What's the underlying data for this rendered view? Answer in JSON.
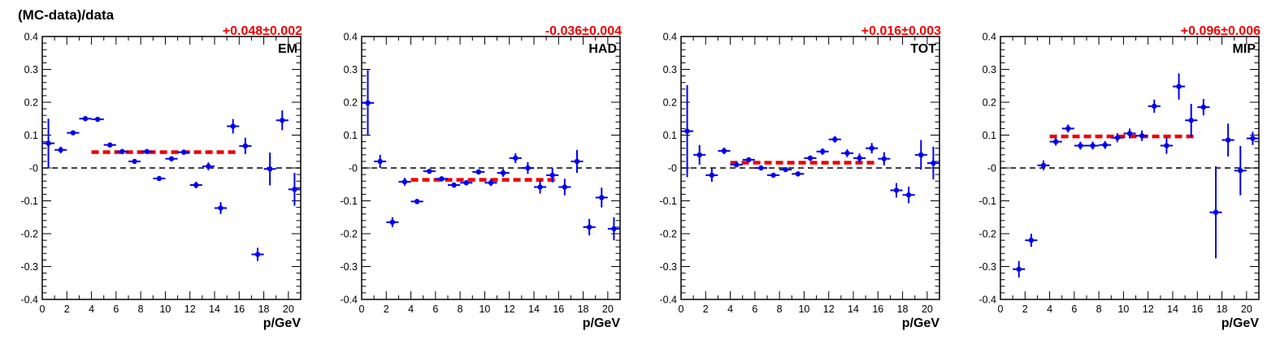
{
  "figure": {
    "ylabel": "(MC-data)/data"
  },
  "colors": {
    "points": "#0000ee",
    "fit": "#ee0000",
    "fit_text": "#ee0000",
    "zero_line": "#000000",
    "axis": "#000000"
  },
  "chart_data": [
    {
      "type": "scatter",
      "label": "EM",
      "fit_text": "+0.048±0.002",
      "fit_value": 0.048,
      "fit_range": [
        4,
        16
      ],
      "xlabel": "p/GeV",
      "xlim": [
        0,
        21
      ],
      "ylim": [
        -0.4,
        0.4
      ],
      "x_ticks": [
        "0",
        "2",
        "4",
        "6",
        "8",
        "10",
        "12",
        "14",
        "16",
        "18",
        "20"
      ],
      "y_ticks": [
        "-0.4",
        "-0.3",
        "-0.2",
        "-0.1",
        "-0",
        "0.1",
        "0.2",
        "0.3",
        "0.4"
      ],
      "reference_line": 0,
      "points": [
        {
          "x": 0.5,
          "y": 0.075,
          "yerr": 0.075
        },
        {
          "x": 1.5,
          "y": 0.055,
          "yerr": 0.01
        },
        {
          "x": 2.5,
          "y": 0.107,
          "yerr": 0.006
        },
        {
          "x": 3.5,
          "y": 0.15,
          "yerr": 0.005
        },
        {
          "x": 4.5,
          "y": 0.148,
          "yerr": 0.005
        },
        {
          "x": 5.5,
          "y": 0.07,
          "yerr": 0.007
        },
        {
          "x": 6.5,
          "y": 0.05,
          "yerr": 0.006
        },
        {
          "x": 7.5,
          "y": 0.02,
          "yerr": 0.007
        },
        {
          "x": 8.5,
          "y": 0.05,
          "yerr": 0.006
        },
        {
          "x": 9.5,
          "y": -0.032,
          "yerr": 0.006
        },
        {
          "x": 10.5,
          "y": 0.028,
          "yerr": 0.007
        },
        {
          "x": 11.5,
          "y": 0.048,
          "yerr": 0.008
        },
        {
          "x": 12.5,
          "y": -0.052,
          "yerr": 0.01
        },
        {
          "x": 13.5,
          "y": 0.005,
          "yerr": 0.012
        },
        {
          "x": 14.5,
          "y": -0.122,
          "yerr": 0.018
        },
        {
          "x": 15.5,
          "y": 0.127,
          "yerr": 0.022
        },
        {
          "x": 16.5,
          "y": 0.067,
          "yerr": 0.025
        },
        {
          "x": 17.5,
          "y": -0.263,
          "yerr": 0.02
        },
        {
          "x": 18.5,
          "y": -0.003,
          "yerr": 0.05
        },
        {
          "x": 19.5,
          "y": 0.145,
          "yerr": 0.03
        },
        {
          "x": 20.5,
          "y": -0.065,
          "yerr": 0.05
        }
      ]
    },
    {
      "type": "scatter",
      "label": "HAD",
      "fit_text": "-0.036±0.004",
      "fit_value": -0.036,
      "fit_range": [
        4,
        16
      ],
      "xlabel": "p/GeV",
      "xlim": [
        0,
        21
      ],
      "ylim": [
        -0.4,
        0.4
      ],
      "x_ticks": [
        "0",
        "2",
        "4",
        "6",
        "8",
        "10",
        "12",
        "14",
        "16",
        "18",
        "20"
      ],
      "y_ticks": [
        "-0.4",
        "-0.3",
        "-0.2",
        "-0.1",
        "-0",
        "0.1",
        "0.2",
        "0.3",
        "0.4"
      ],
      "reference_line": 0,
      "points": [
        {
          "x": 0.5,
          "y": 0.198,
          "yerr": 0.1
        },
        {
          "x": 1.5,
          "y": 0.02,
          "yerr": 0.02
        },
        {
          "x": 2.5,
          "y": -0.165,
          "yerr": 0.015
        },
        {
          "x": 3.5,
          "y": -0.042,
          "yerr": 0.012
        },
        {
          "x": 4.5,
          "y": -0.102,
          "yerr": 0.008
        },
        {
          "x": 5.5,
          "y": -0.01,
          "yerr": 0.007
        },
        {
          "x": 6.5,
          "y": -0.033,
          "yerr": 0.006
        },
        {
          "x": 7.5,
          "y": -0.052,
          "yerr": 0.008
        },
        {
          "x": 8.5,
          "y": -0.045,
          "yerr": 0.008
        },
        {
          "x": 9.5,
          "y": -0.012,
          "yerr": 0.008
        },
        {
          "x": 10.5,
          "y": -0.045,
          "yerr": 0.01
        },
        {
          "x": 11.5,
          "y": -0.015,
          "yerr": 0.012
        },
        {
          "x": 12.5,
          "y": 0.03,
          "yerr": 0.015
        },
        {
          "x": 13.5,
          "y": 0.0,
          "yerr": 0.018
        },
        {
          "x": 14.5,
          "y": -0.058,
          "yerr": 0.02
        },
        {
          "x": 15.5,
          "y": -0.022,
          "yerr": 0.022
        },
        {
          "x": 16.5,
          "y": -0.058,
          "yerr": 0.025
        },
        {
          "x": 17.5,
          "y": 0.02,
          "yerr": 0.035
        },
        {
          "x": 18.5,
          "y": -0.18,
          "yerr": 0.025
        },
        {
          "x": 19.5,
          "y": -0.09,
          "yerr": 0.03
        },
        {
          "x": 20.5,
          "y": -0.185,
          "yerr": 0.035
        }
      ]
    },
    {
      "type": "scatter",
      "label": "TOT",
      "fit_text": "+0.016±0.003",
      "fit_value": 0.016,
      "fit_range": [
        4,
        16
      ],
      "xlabel": "p/GeV",
      "xlim": [
        0,
        21
      ],
      "ylim": [
        -0.4,
        0.4
      ],
      "x_ticks": [
        "0",
        "2",
        "4",
        "6",
        "8",
        "10",
        "12",
        "14",
        "16",
        "18",
        "20"
      ],
      "y_ticks": [
        "-0.4",
        "-0.3",
        "-0.2",
        "-0.1",
        "-0",
        "0.1",
        "0.2",
        "0.3",
        "0.4"
      ],
      "reference_line": 0,
      "points": [
        {
          "x": 0.5,
          "y": 0.112,
          "yerr": 0.14
        },
        {
          "x": 1.5,
          "y": 0.04,
          "yerr": 0.03
        },
        {
          "x": 2.5,
          "y": -0.022,
          "yerr": 0.02
        },
        {
          "x": 3.5,
          "y": 0.052,
          "yerr": 0.01
        },
        {
          "x": 4.5,
          "y": 0.01,
          "yerr": 0.008
        },
        {
          "x": 5.5,
          "y": 0.025,
          "yerr": 0.006
        },
        {
          "x": 6.5,
          "y": 0.0,
          "yerr": 0.006
        },
        {
          "x": 7.5,
          "y": -0.022,
          "yerr": 0.007
        },
        {
          "x": 8.5,
          "y": -0.005,
          "yerr": 0.007
        },
        {
          "x": 9.5,
          "y": -0.018,
          "yerr": 0.008
        },
        {
          "x": 10.5,
          "y": 0.03,
          "yerr": 0.008
        },
        {
          "x": 11.5,
          "y": 0.05,
          "yerr": 0.01
        },
        {
          "x": 12.5,
          "y": 0.087,
          "yerr": 0.01
        },
        {
          "x": 13.5,
          "y": 0.045,
          "yerr": 0.012
        },
        {
          "x": 14.5,
          "y": 0.03,
          "yerr": 0.014
        },
        {
          "x": 15.5,
          "y": 0.06,
          "yerr": 0.016
        },
        {
          "x": 16.5,
          "y": 0.028,
          "yerr": 0.02
        },
        {
          "x": 17.5,
          "y": -0.068,
          "yerr": 0.022
        },
        {
          "x": 18.5,
          "y": -0.082,
          "yerr": 0.025
        },
        {
          "x": 19.5,
          "y": 0.04,
          "yerr": 0.045
        },
        {
          "x": 20.5,
          "y": 0.015,
          "yerr": 0.05
        }
      ]
    },
    {
      "type": "scatter",
      "label": "MIP",
      "fit_text": "+0.096±0.006",
      "fit_value": 0.096,
      "fit_range": [
        4,
        16
      ],
      "xlabel": "p/GeV",
      "xlim": [
        0,
        21
      ],
      "ylim": [
        -0.4,
        0.4
      ],
      "x_ticks": [
        "0",
        "2",
        "4",
        "6",
        "8",
        "10",
        "12",
        "14",
        "16",
        "18",
        "20"
      ],
      "y_ticks": [
        "-0.4",
        "-0.3",
        "-0.2",
        "-0.1",
        "-0",
        "0.1",
        "0.2",
        "0.3",
        "0.4"
      ],
      "reference_line": 0,
      "points": [
        {
          "x": 1.5,
          "y": -0.308,
          "yerr": 0.025
        },
        {
          "x": 2.5,
          "y": -0.22,
          "yerr": 0.02
        },
        {
          "x": 3.5,
          "y": 0.008,
          "yerr": 0.015
        },
        {
          "x": 4.5,
          "y": 0.08,
          "yerr": 0.012
        },
        {
          "x": 5.5,
          "y": 0.12,
          "yerr": 0.012
        },
        {
          "x": 6.5,
          "y": 0.068,
          "yerr": 0.012
        },
        {
          "x": 7.5,
          "y": 0.068,
          "yerr": 0.012
        },
        {
          "x": 8.5,
          "y": 0.07,
          "yerr": 0.012
        },
        {
          "x": 9.5,
          "y": 0.092,
          "yerr": 0.014
        },
        {
          "x": 10.5,
          "y": 0.105,
          "yerr": 0.015
        },
        {
          "x": 11.5,
          "y": 0.098,
          "yerr": 0.016
        },
        {
          "x": 12.5,
          "y": 0.188,
          "yerr": 0.02
        },
        {
          "x": 13.5,
          "y": 0.068,
          "yerr": 0.025
        },
        {
          "x": 14.5,
          "y": 0.248,
          "yerr": 0.04
        },
        {
          "x": 15.5,
          "y": 0.145,
          "yerr": 0.05
        },
        {
          "x": 16.5,
          "y": 0.185,
          "yerr": 0.025
        },
        {
          "x": 17.5,
          "y": -0.135,
          "yerr": 0.14
        },
        {
          "x": 18.5,
          "y": 0.085,
          "yerr": 0.05
        },
        {
          "x": 19.5,
          "y": -0.008,
          "yerr": 0.075
        },
        {
          "x": 20.5,
          "y": 0.09,
          "yerr": 0.02
        }
      ]
    }
  ]
}
